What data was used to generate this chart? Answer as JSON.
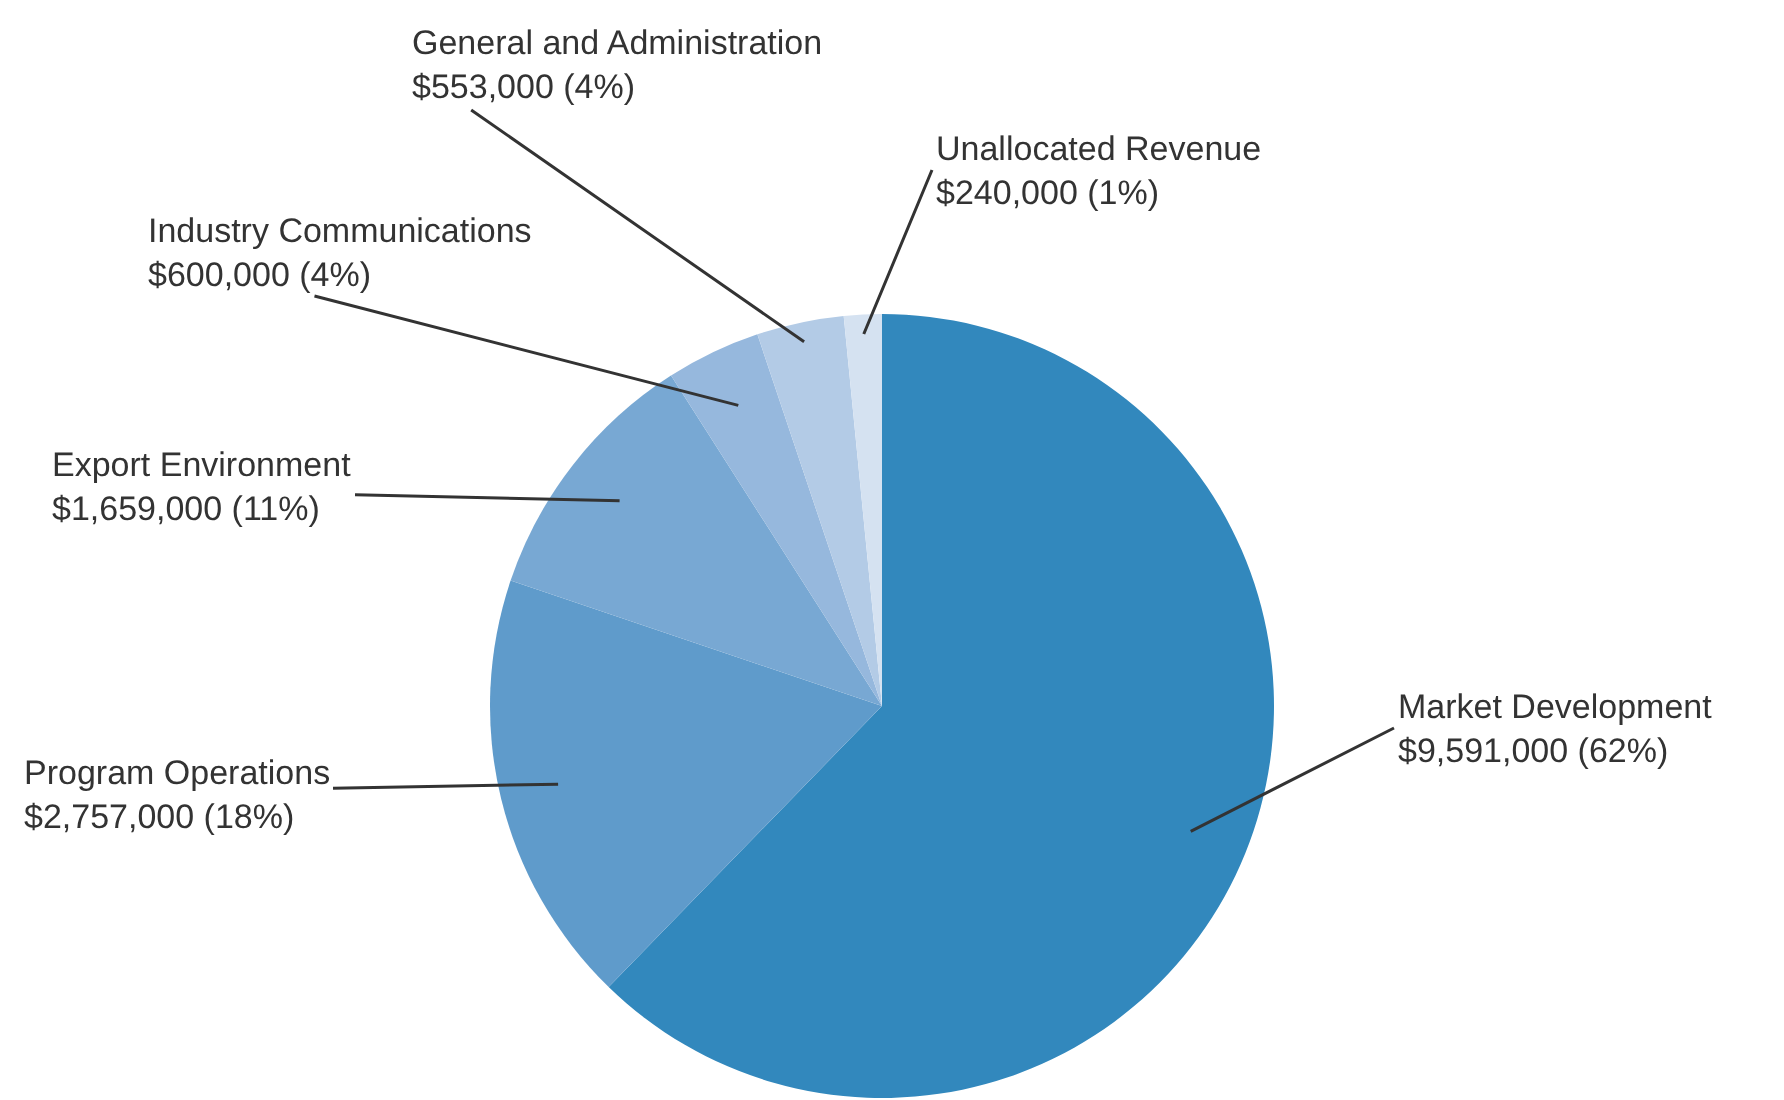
{
  "chart_data": {
    "type": "pie",
    "categories": [
      "Market Development",
      "Program Operations",
      "Export Environment",
      "Industry Communications",
      "General and Administration",
      "Unallocated Revenue"
    ],
    "values": [
      9591000,
      2757000,
      1659000,
      600000,
      553000,
      240000
    ],
    "value_labels": [
      "$9,591,000 (62%)",
      "$2,757,000 (18%)",
      "$1,659,000 (11%)",
      "$600,000 (4%)",
      "$553,000 (4%)",
      "$240,000 (1%)"
    ],
    "colors": [
      "#3288bd",
      "#5f9bcb",
      "#78a8d3",
      "#96b8dd",
      "#b3cbe6",
      "#d5e2f1"
    ]
  }
}
